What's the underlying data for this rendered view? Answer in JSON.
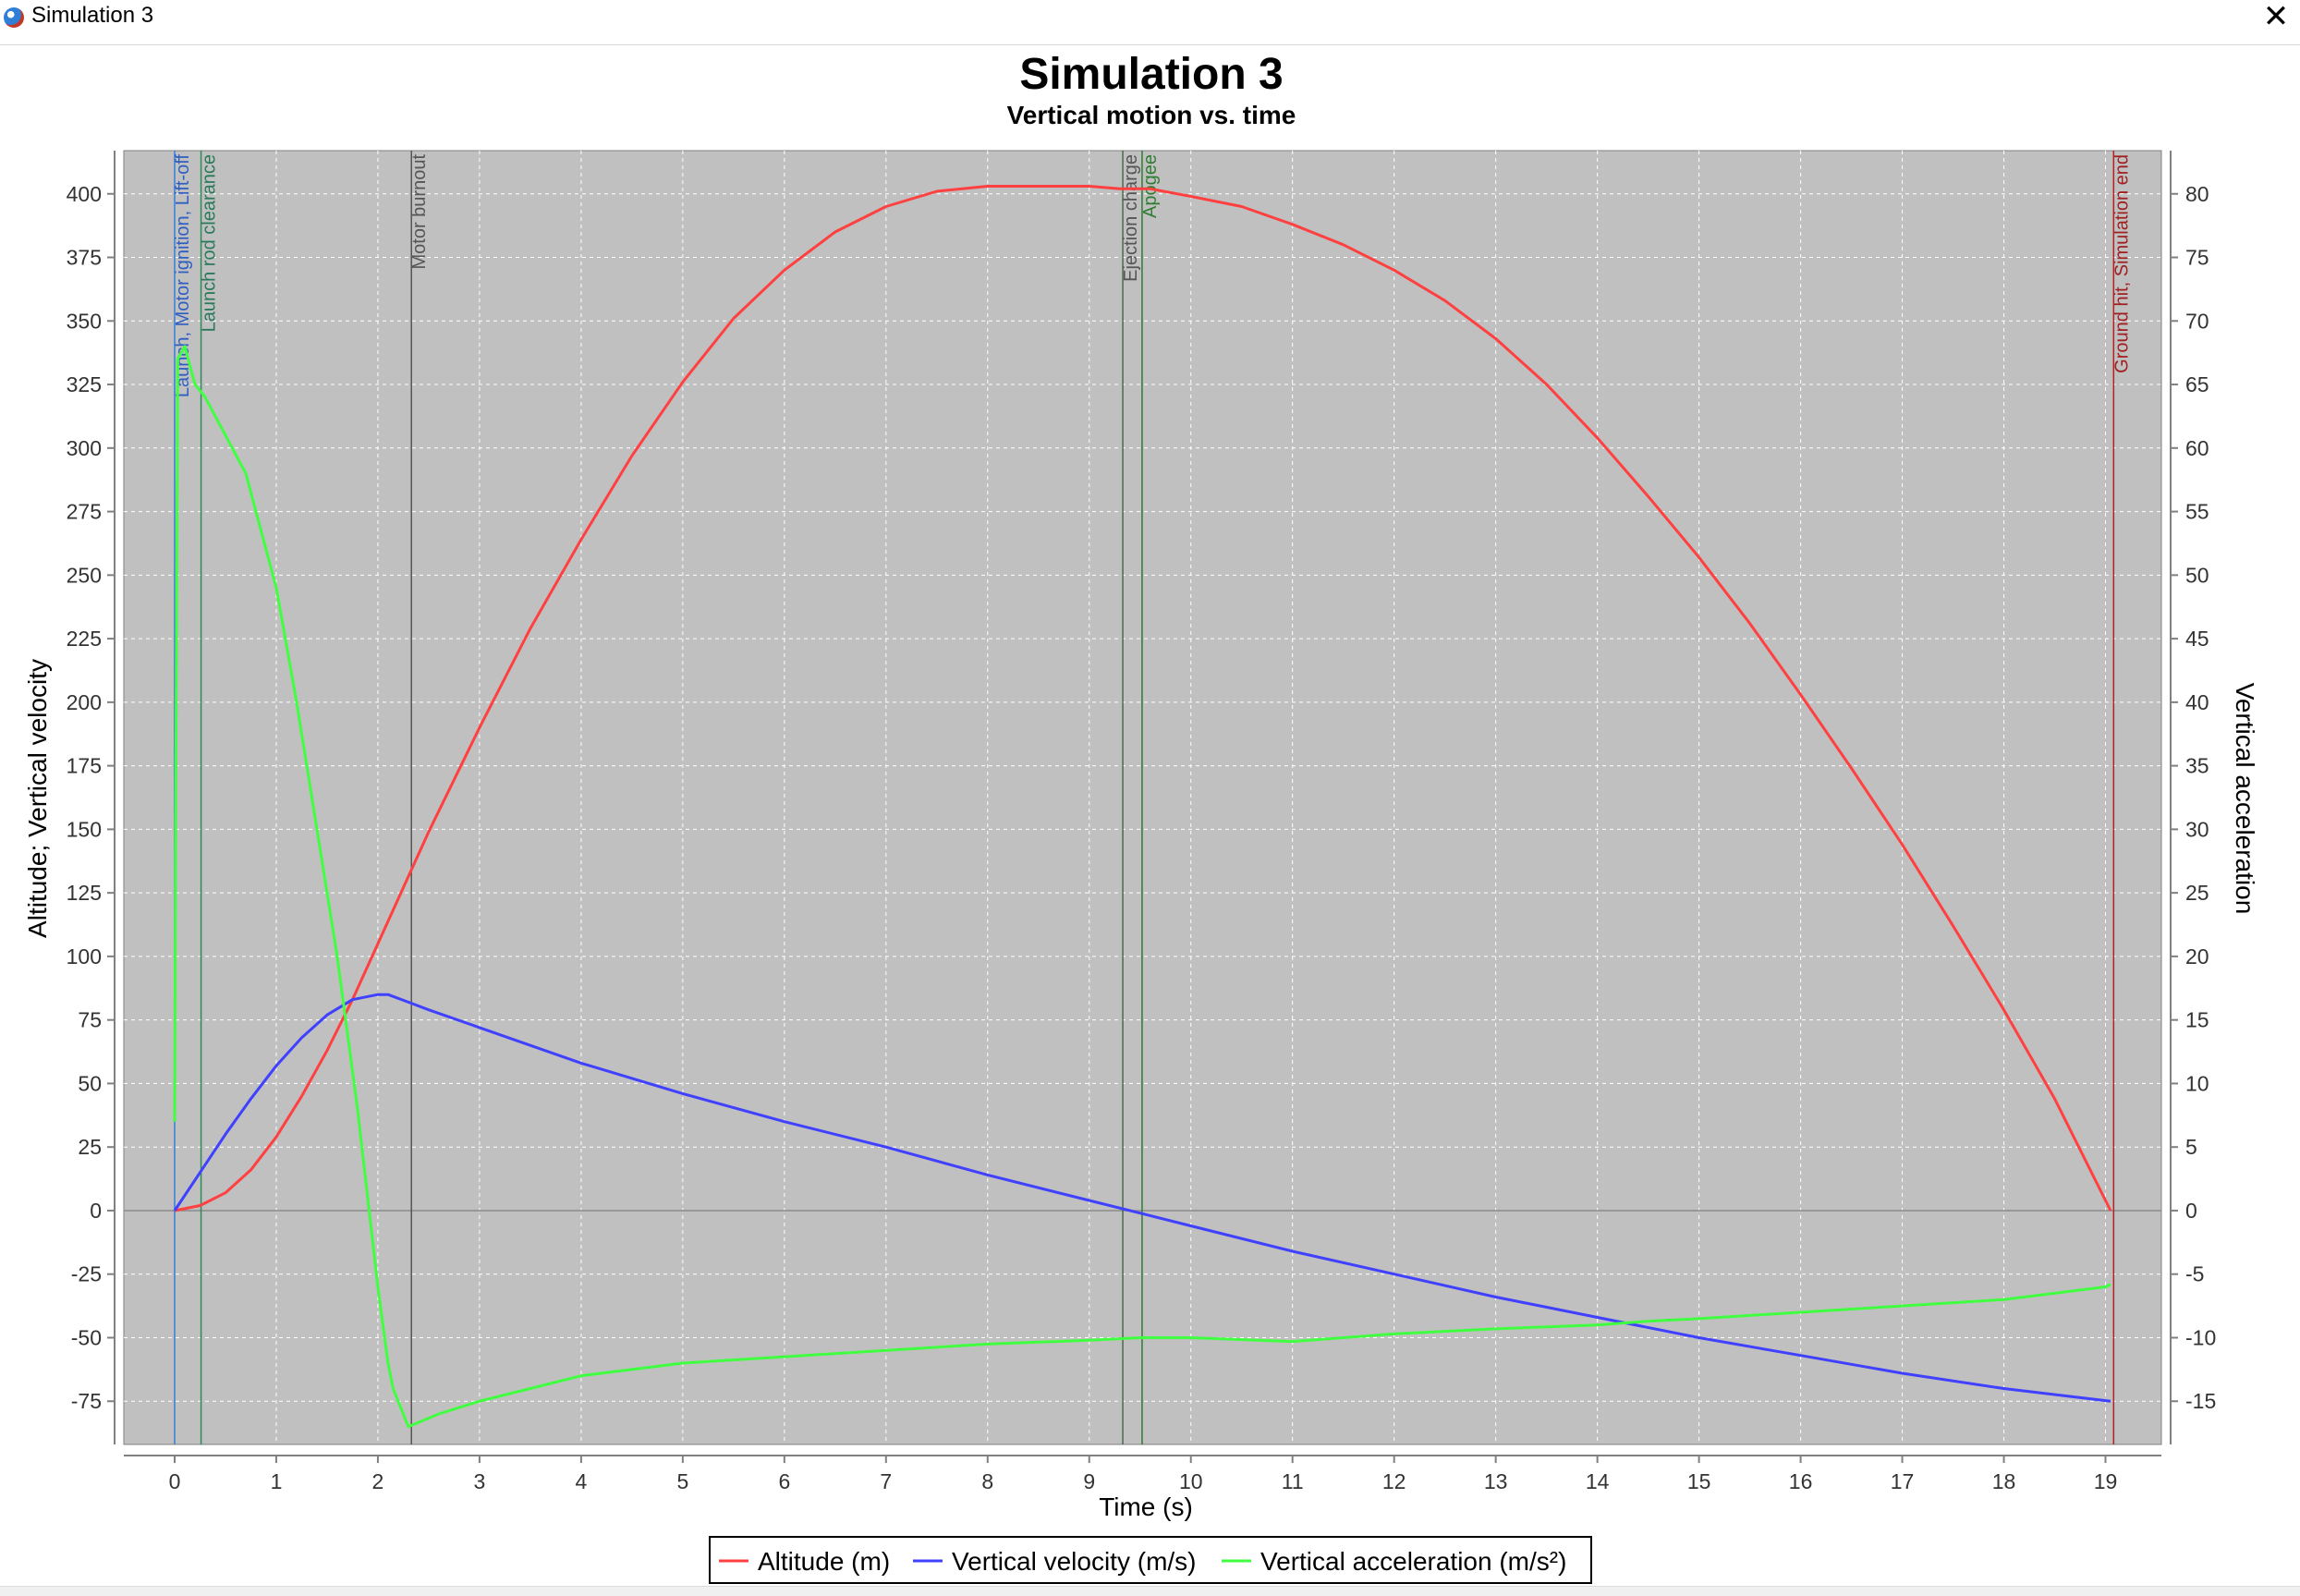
{
  "window": {
    "title": "Simulation 3",
    "icon": "rocket-app-icon",
    "close_glyph": "✕"
  },
  "chart_data": {
    "type": "line",
    "title": "Simulation 3",
    "subtitle": "Vertical motion vs. time",
    "xlabel": "Time (s)",
    "ylabel_left": "Altitude; Vertical velocity",
    "ylabel_right": "Vertical acceleration",
    "xlim": [
      -0.5,
      19.55
    ],
    "ylim_left": [
      -92,
      417
    ],
    "ylim_right": [
      -18.4,
      83.4
    ],
    "x_ticks": [
      0,
      1,
      2,
      3,
      4,
      5,
      6,
      7,
      8,
      9,
      10,
      11,
      12,
      13,
      14,
      15,
      16,
      17,
      18,
      19
    ],
    "y_ticks_left": [
      -75,
      -50,
      -25,
      0,
      25,
      50,
      75,
      100,
      125,
      150,
      175,
      200,
      225,
      250,
      275,
      300,
      325,
      350,
      375,
      400
    ],
    "y_ticks_right": [
      -15,
      -10,
      -5,
      0,
      5,
      10,
      15,
      20,
      25,
      30,
      35,
      40,
      45,
      50,
      55,
      60,
      65,
      70,
      75,
      80
    ],
    "grid": true,
    "legend_position": "bottom",
    "plot_background": "#c0c0c0",
    "series": [
      {
        "name": "Altitude (m)",
        "axis": "left",
        "color": "#ff4040",
        "x": [
          0,
          0.25,
          0.5,
          0.75,
          1,
          1.25,
          1.5,
          1.75,
          2,
          2.25,
          2.5,
          3,
          3.5,
          4,
          4.5,
          5,
          5.5,
          6,
          6.5,
          7,
          7.5,
          8,
          8.5,
          9,
          9.3,
          9.6,
          10,
          10.5,
          11,
          11.5,
          12,
          12.5,
          13,
          13.5,
          14,
          14.5,
          15,
          15.5,
          16,
          16.5,
          17,
          17.5,
          18,
          18.5,
          19.05
        ],
        "values": [
          0,
          2,
          7,
          16,
          29,
          45,
          63,
          83,
          105,
          127,
          149,
          190,
          229,
          264,
          297,
          326,
          351,
          370,
          385,
          395,
          401,
          403,
          403,
          403,
          402,
          402,
          399,
          395,
          388,
          380,
          370,
          358,
          343,
          325,
          304,
          281,
          257,
          231,
          203,
          174,
          144,
          112,
          79,
          44,
          0
        ]
      },
      {
        "name": "Vertical velocity (m/s)",
        "axis": "left",
        "color": "#4040ff",
        "x": [
          0,
          0.25,
          0.5,
          0.75,
          1,
          1.25,
          1.5,
          1.75,
          2,
          2.1,
          2.3,
          2.5,
          3,
          3.5,
          4,
          5,
          6,
          7,
          8,
          9,
          9.5,
          10,
          11,
          12,
          13,
          14,
          15,
          16,
          17,
          18,
          19.05
        ],
        "values": [
          0,
          15,
          30,
          44,
          57,
          68,
          77,
          83,
          85,
          85,
          82,
          79,
          72,
          65,
          58,
          46,
          35,
          25,
          14,
          4,
          -1,
          -6,
          -16,
          -25,
          -34,
          -42,
          -50,
          -57,
          -64,
          -70,
          -75
        ]
      },
      {
        "name": "Vertical acceleration (m/s²)",
        "axis": "right",
        "color": "#40ff40",
        "x": [
          0,
          0.01,
          0.03,
          0.1,
          0.2,
          0.3,
          0.5,
          0.7,
          0.8,
          1,
          1.2,
          1.4,
          1.6,
          1.8,
          1.9,
          2,
          2.1,
          2.15,
          2.25,
          2.3,
          2.45,
          2.6,
          3,
          3.5,
          4,
          5,
          6,
          7,
          8,
          9,
          9.5,
          10,
          11,
          11.5,
          12,
          12.5,
          13,
          14,
          14.5,
          15,
          16,
          17,
          18,
          19,
          19.05
        ],
        "values": [
          7,
          30,
          67,
          68,
          65,
          64,
          61,
          58,
          55,
          49,
          40,
          30,
          20,
          8,
          1,
          -6,
          -12,
          -14,
          -16,
          -17,
          -16.5,
          -16,
          -15,
          -14,
          -13,
          -12,
          -11.5,
          -11,
          -10.5,
          -10.2,
          -10,
          -10,
          -10.3,
          -10,
          -9.7,
          -9.5,
          -9.3,
          -9,
          -8.7,
          -8.5,
          -8,
          -7.5,
          -7,
          -6,
          -5.8
        ]
      }
    ],
    "events": [
      {
        "label": "Launch, Motor ignition, Lift-off",
        "x": 0,
        "color": "#3b7dd8",
        "text_color": "#2f5fc0"
      },
      {
        "label": "Launch rod clearance",
        "x": 0.26,
        "color": "#2e8b57",
        "text_color": "#2a7a5a"
      },
      {
        "label": "Motor burnout",
        "x": 2.33,
        "color": "#555555",
        "text_color": "#555555"
      },
      {
        "label": "Ejection charge",
        "x": 9.33,
        "color": "#4a6a4a",
        "text_color": "#555555"
      },
      {
        "label": "Apogee",
        "x": 9.52,
        "color": "#2e7d32",
        "text_color": "#2e7d32"
      },
      {
        "label": "Ground hit, Simulation end",
        "x": 19.08,
        "color": "#b22222",
        "text_color": "#a02020"
      }
    ]
  }
}
